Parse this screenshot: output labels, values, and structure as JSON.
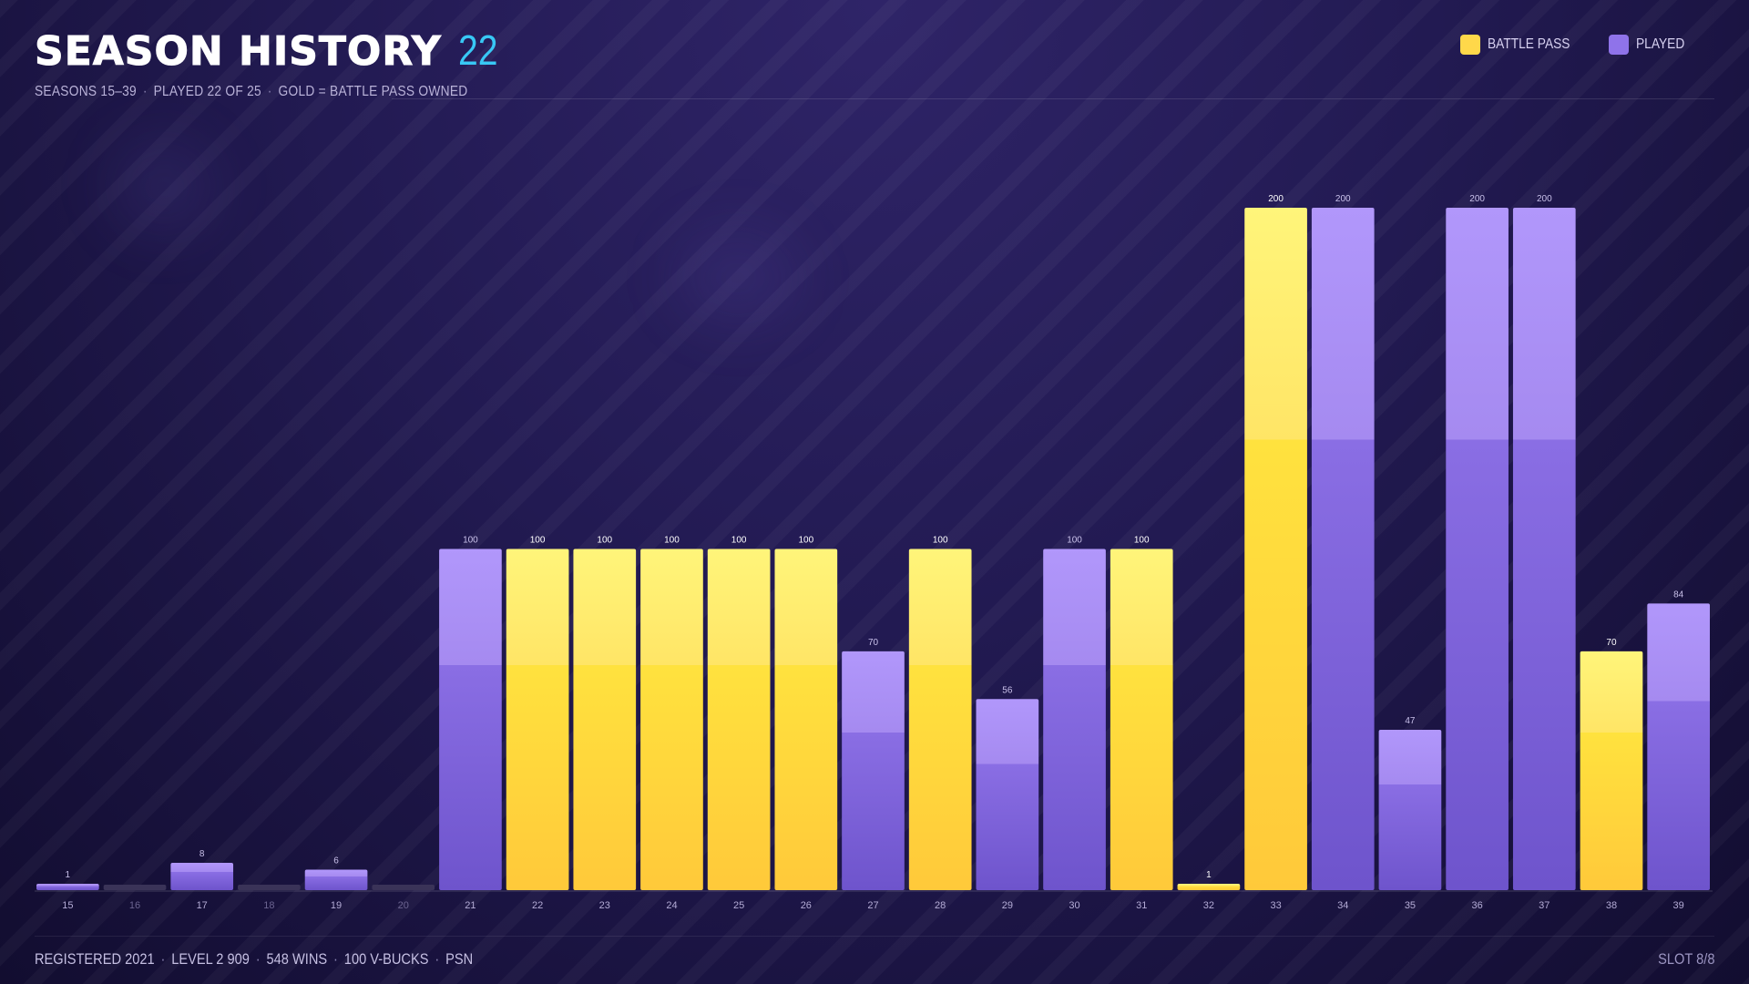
{
  "header": {
    "title": "SEASON HISTORY",
    "count": "22",
    "subtitle_parts": [
      "SEASONS 15–39",
      "PLAYED 22 OF 25",
      "GOLD = BATTLE PASS OWNED"
    ]
  },
  "legend": {
    "battle_pass_label": "BATTLE PASS",
    "played_label": "PLAYED"
  },
  "colors": {
    "battle_pass": "#ffd84a",
    "played": "#9a7ff0",
    "not_played": "#3a3358",
    "title_count": "#38c8f5"
  },
  "footer": {
    "left_parts": [
      "REGISTERED 2021",
      "LEVEL 2 909",
      "548 WINS",
      "100 V-BUCKS",
      "PSN"
    ],
    "right": "SLOT 8/8"
  },
  "chart_data": {
    "type": "bar",
    "title": "SEASON HISTORY",
    "xlabel": "",
    "ylabel": "",
    "ylim": [
      0,
      200
    ],
    "grid": false,
    "legend_position": "top-right",
    "categories": [
      "15",
      "16",
      "17",
      "18",
      "19",
      "20",
      "21",
      "22",
      "23",
      "24",
      "25",
      "26",
      "27",
      "28",
      "29",
      "30",
      "31",
      "32",
      "33",
      "34",
      "35",
      "36",
      "37",
      "38",
      "39"
    ],
    "values": [
      1,
      null,
      8,
      null,
      6,
      null,
      100,
      100,
      100,
      100,
      100,
      100,
      70,
      100,
      56,
      100,
      100,
      1,
      200,
      200,
      47,
      200,
      200,
      70,
      84
    ],
    "status": [
      "played",
      "none",
      "played",
      "none",
      "played",
      "none",
      "played",
      "battle_pass",
      "battle_pass",
      "battle_pass",
      "battle_pass",
      "battle_pass",
      "played",
      "battle_pass",
      "played",
      "played",
      "battle_pass",
      "battle_pass",
      "battle_pass",
      "played",
      "played",
      "played",
      "played",
      "battle_pass",
      "played"
    ]
  }
}
